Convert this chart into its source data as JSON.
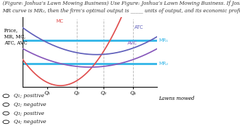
{
  "title_line1": "(Figure: Joshua’s Lawn Mowing Business) Use Figure: Joshua’s Lawn Mowing Business. If Joshua’s lawn mowing firm’s",
  "title_line2": "MR curve is MR₂, then the firm’s optimal output is _____ units of output, and its economic profit will be _____.",
  "ylabel": "Price,\nMR, MC,\nATC, AVC",
  "xlabel": "Lawns mowed",
  "q_labels": [
    "Q₁",
    "Q₂",
    "Q₃",
    "Q₄"
  ],
  "mr1_level": 0.63,
  "mr2_level": 0.32,
  "mc_color": "#e05050",
  "atc_color": "#6060bb",
  "avc_color": "#8858bb",
  "mr1_color": "#3ab8e8",
  "mr2_color": "#3ab8e8",
  "dashed_color": "#bbbbbb",
  "choices": [
    "Q₁; positive",
    "Q₂; negative",
    "Q₃; positive",
    "Q₄; negative"
  ],
  "checked_index": -1,
  "background_color": "#ffffff"
}
